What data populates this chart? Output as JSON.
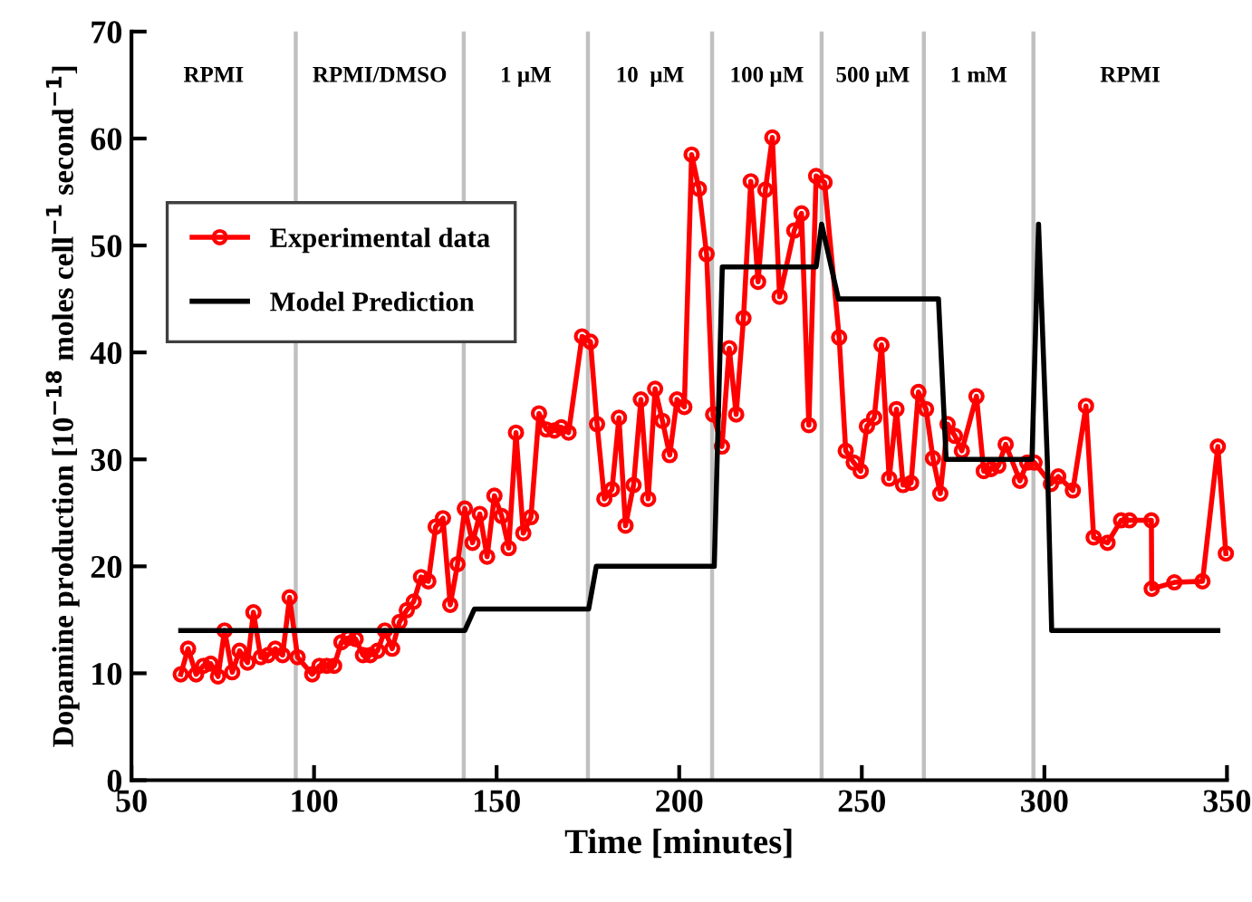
{
  "chart_data": {
    "type": "line",
    "xlabel": "Time [minutes]",
    "ylabel": "Dopamine production [10$^{−18}$ moles cell$^{−1}$ second$^{−1}$]",
    "xlim": [
      50,
      350
    ],
    "xticks": [
      50,
      100,
      150,
      200,
      250,
      300,
      350
    ],
    "ylim": [
      0,
      70
    ],
    "yticks": [
      0,
      10,
      20,
      30,
      40,
      50,
      60,
      70
    ],
    "grid": false,
    "legend": "top left",
    "series": [
      {
        "name": "Experimental data",
        "color": "#ff0000",
        "marker": "circle",
        "line_style": "solid",
        "x": [
          63.5,
          65.5,
          67.7,
          69.7,
          71.7,
          73.7,
          75.5,
          77.6,
          79.6,
          81.8,
          83.4,
          85.4,
          87.4,
          89.4,
          91.4,
          93.3,
          95.5,
          99.5,
          101.5,
          103.5,
          105.5,
          107.5,
          109.4,
          111.4,
          113.4,
          115.4,
          117.4,
          119.4,
          121.4,
          123.4,
          125.4,
          127.3,
          129.3,
          131.3,
          133.3,
          135.3,
          137.3,
          139.3,
          141.3,
          143.4,
          145.4,
          147.4,
          149.4,
          151.4,
          153.3,
          155.3,
          157.3,
          159.4,
          161.6,
          163.6,
          165.8,
          167.7,
          169.7,
          173.4,
          175.7,
          177.5,
          179.5,
          181.6,
          183.5,
          185.3,
          187.5,
          189.5,
          191.5,
          193.4,
          195.4,
          197.4,
          199.4,
          201.4,
          203.4,
          205.4,
          207.5,
          209.3,
          211.7,
          213.7,
          215.6,
          217.6,
          219.6,
          221.6,
          223.6,
          225.5,
          227.5,
          231.5,
          233.5,
          235.5,
          237.5,
          239.8,
          243.8,
          245.6,
          247.8,
          249.7,
          251.4,
          253.4,
          255.4,
          257.5,
          259.5,
          261.3,
          263.5,
          265.5,
          267.6,
          269.5,
          271.5,
          273.5,
          275.5,
          277.4,
          281.4,
          283.4,
          285.4,
          287.4,
          289.4,
          293.3,
          295.3,
          297.3,
          301.8,
          303.8,
          307.8,
          311.4,
          313.5,
          317.3,
          321.0,
          323.3,
          329.3,
          329.4,
          335.6,
          343.3,
          347.5,
          349.7
        ],
        "values": [
          9.9,
          12.3,
          9.9,
          10.7,
          10.9,
          9.7,
          14.0,
          10.1,
          12.1,
          11.0,
          15.7,
          11.5,
          11.7,
          12.3,
          11.7,
          17.1,
          11.5,
          9.9,
          10.7,
          10.7,
          10.7,
          12.9,
          13.3,
          13.2,
          11.7,
          11.7,
          12.1,
          14.0,
          12.3,
          14.8,
          15.9,
          16.7,
          19.0,
          18.6,
          23.7,
          24.5,
          16.4,
          20.2,
          25.4,
          22.2,
          24.9,
          20.9,
          26.6,
          24.7,
          21.7,
          32.5,
          23.1,
          24.6,
          34.3,
          32.8,
          32.7,
          33.0,
          32.5,
          41.5,
          41.0,
          33.3,
          26.3,
          27.2,
          33.9,
          23.8,
          27.6,
          35.6,
          26.3,
          36.6,
          33.6,
          30.4,
          35.6,
          34.9,
          58.5,
          55.3,
          49.2,
          34.2,
          31.2,
          40.4,
          34.2,
          43.2,
          56.0,
          46.6,
          55.2,
          60.1,
          45.2,
          51.4,
          53.0,
          33.2,
          56.5,
          55.9,
          41.4,
          30.8,
          29.7,
          28.9,
          33.1,
          33.9,
          40.7,
          28.2,
          34.7,
          27.6,
          27.8,
          36.3,
          34.7,
          30.1,
          26.8,
          33.3,
          32.2,
          30.8,
          35.9,
          28.9,
          29.1,
          29.4,
          31.4,
          28.0,
          29.7,
          29.7,
          27.7,
          28.4,
          27.1,
          35.0,
          22.7,
          22.2,
          24.3,
          24.3,
          24.3,
          17.9,
          18.5,
          18.6,
          31.2,
          21.2
        ]
      },
      {
        "name": "Model Prediction",
        "color": "#000000",
        "marker": "none",
        "line_style": "solid",
        "x": [
          63.5,
          141.3,
          143.9,
          175.2,
          177.3,
          209.6,
          211.8,
          237.5,
          239.0,
          243.6,
          271.0,
          273.1,
          296.6,
          298.4,
          300.8,
          302.0,
          347.5
        ],
        "values": [
          14,
          14,
          16,
          16,
          20,
          20,
          48,
          48,
          52,
          45,
          45,
          30,
          30,
          52,
          30,
          14,
          14
        ]
      }
    ],
    "ref_lines": [
      {
        "axis": "x",
        "value": 95,
        "color": "#c0c0c0"
      },
      {
        "axis": "x",
        "value": 141,
        "color": "#c0c0c0"
      },
      {
        "axis": "x",
        "value": 175,
        "color": "#c0c0c0"
      },
      {
        "axis": "x",
        "value": 209,
        "color": "#c0c0c0"
      },
      {
        "axis": "x",
        "value": 239,
        "color": "#c0c0c0"
      },
      {
        "axis": "x",
        "value": 267,
        "color": "#c0c0c0"
      },
      {
        "axis": "x",
        "value": 297,
        "color": "#c0c0c0"
      }
    ],
    "annotations": [
      "RPMI",
      "RPMI/DMSO",
      "1 µM",
      "10  µM",
      "100 µM",
      "500 µM",
      "1 mM",
      "RPMI"
    ]
  }
}
